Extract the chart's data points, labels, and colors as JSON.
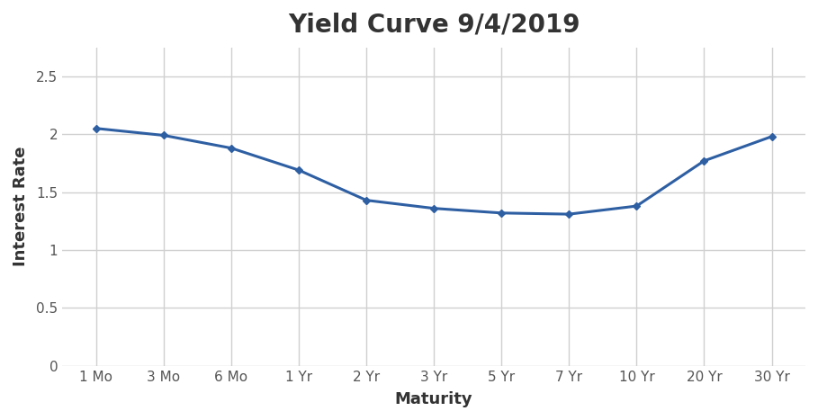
{
  "title": "Yield Curve 9/4/2019",
  "xlabel": "Maturity",
  "ylabel": "Interest Rate",
  "categories": [
    "1 Mo",
    "3 Mo",
    "6 Mo",
    "1 Yr",
    "2 Yr",
    "3 Yr",
    "5 Yr",
    "7 Yr",
    "10 Yr",
    "20 Yr",
    "30 Yr"
  ],
  "values": [
    2.05,
    1.99,
    1.88,
    1.69,
    1.43,
    1.36,
    1.32,
    1.31,
    1.38,
    1.77,
    1.98
  ],
  "line_color": "#2E5FA3",
  "marker": "D",
  "marker_size": 4,
  "line_width": 2.2,
  "ylim": [
    0,
    2.75
  ],
  "yticks": [
    0,
    0.5,
    1,
    1.5,
    2,
    2.5
  ],
  "background_color": "#ffffff",
  "plot_bg_color": "#ffffff",
  "title_fontsize": 20,
  "title_fontweight": "bold",
  "title_color": "#333333",
  "axis_label_fontsize": 13,
  "axis_label_fontweight": "bold",
  "axis_label_color": "#333333",
  "tick_fontsize": 11,
  "tick_color": "#555555",
  "grid_color": "#d0d0d0",
  "grid_linewidth": 1.0
}
